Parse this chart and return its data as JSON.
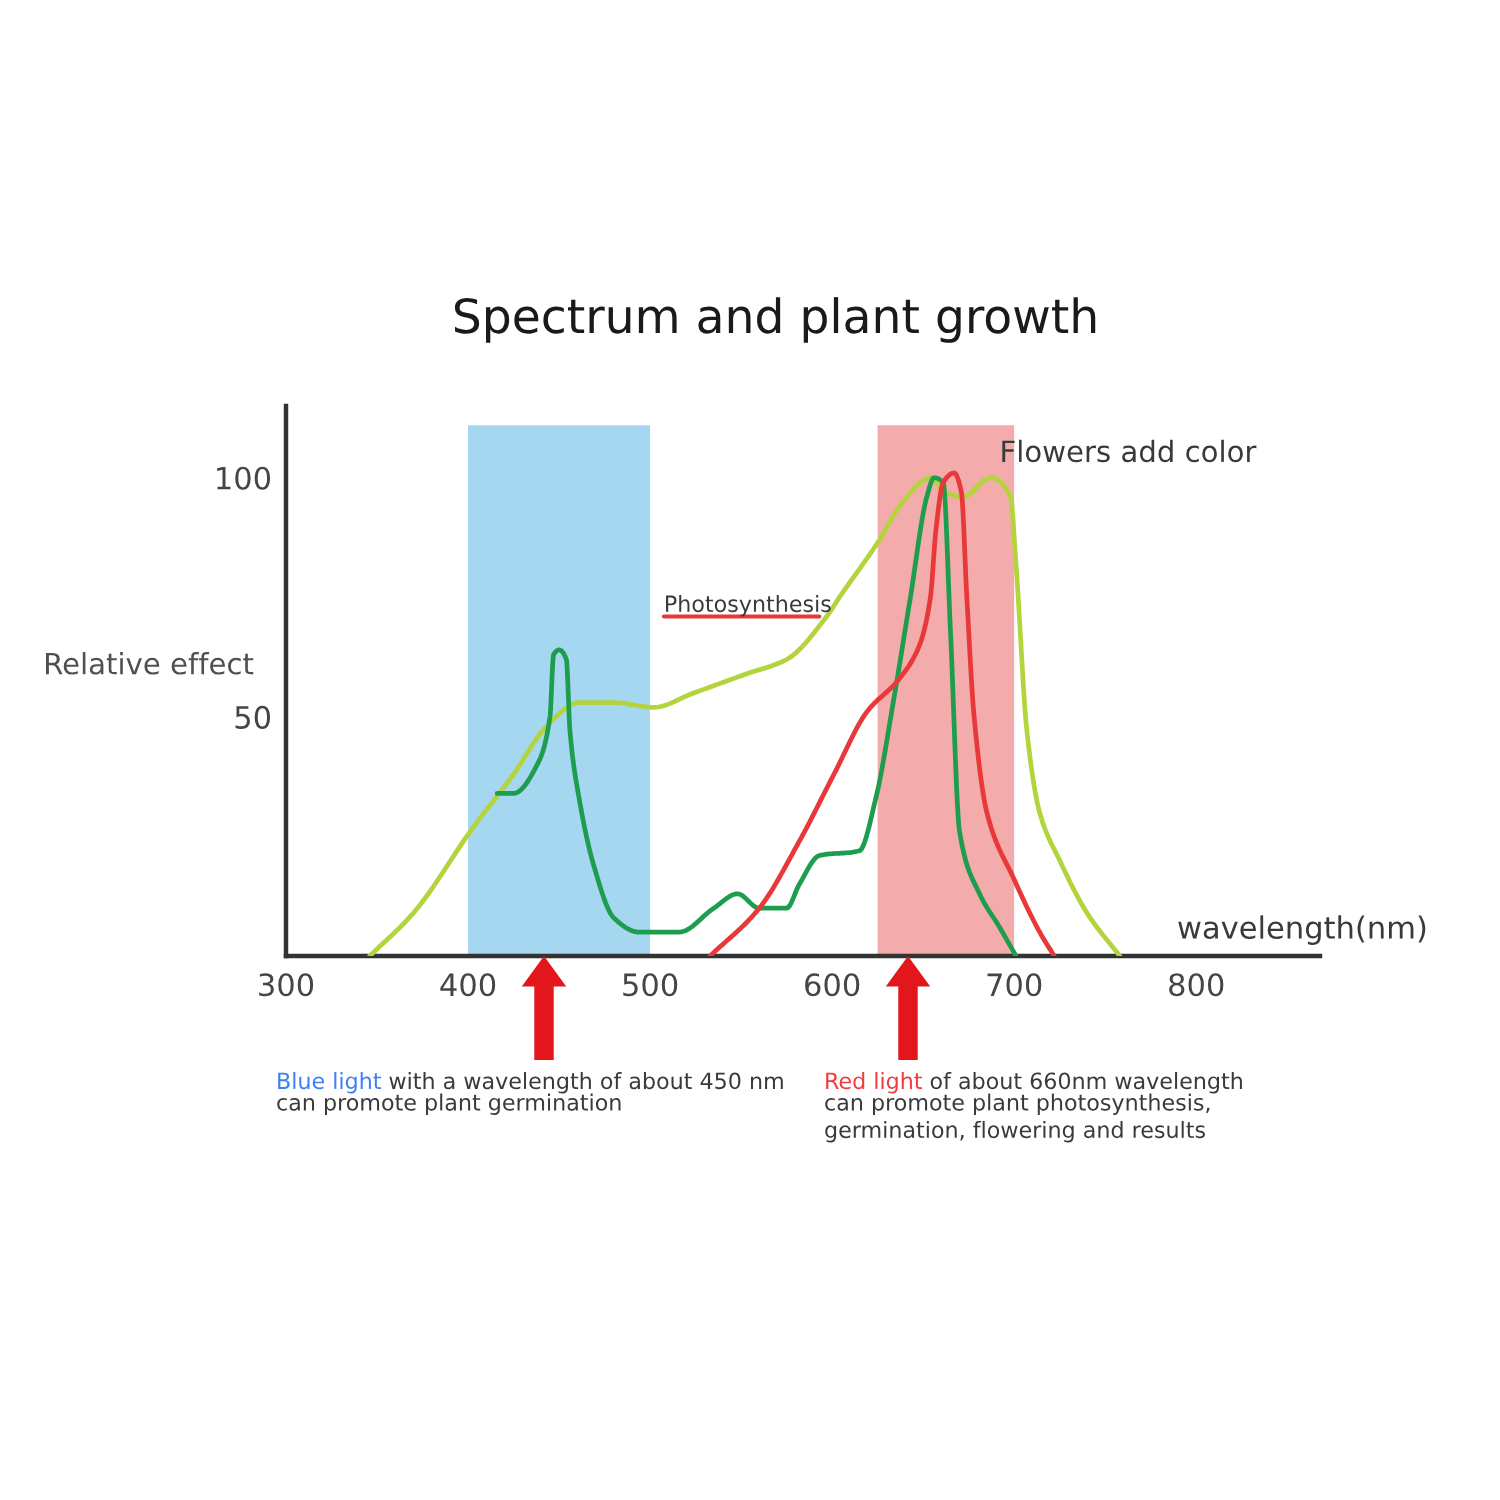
{
  "chart_data": {
    "type": "line",
    "title": "Spectrum and plant growth",
    "xlabel": "wavelength(nm)",
    "ylabel": "Relative effect",
    "xlim": [
      300,
      868
    ],
    "xticks": [
      300,
      400,
      500,
      600,
      700,
      800
    ],
    "ylim": [
      0,
      115
    ],
    "yticks": [
      50,
      100
    ],
    "series": [
      {
        "color": "#b3d43c",
        "x": [
          346,
          370,
          403,
          425,
          443,
          461,
          480,
          502,
          524,
          553,
          575,
          597,
          604,
          626,
          637,
          654,
          662,
          672,
          687,
          698,
          701,
          707,
          714,
          725,
          740,
          758
        ],
        "values": [
          0,
          9,
          27,
          38,
          48,
          53,
          53,
          52,
          55,
          59,
          62,
          71,
          75,
          87,
          94,
          100,
          97,
          96,
          100,
          96,
          82,
          47,
          30,
          20,
          9,
          0
        ]
      },
      {
        "color": "#1f9d4f",
        "x": [
          416,
          425,
          438,
          445,
          447,
          450,
          454,
          456,
          461,
          469,
          480,
          494,
          516,
          535,
          548,
          560,
          575,
          582,
          593,
          615,
          624,
          634,
          643,
          652,
          656,
          661,
          665,
          670,
          681,
          692,
          701
        ],
        "values": [
          34,
          34,
          40,
          50,
          63,
          64,
          62,
          47,
          33,
          19,
          8,
          5,
          5,
          10,
          13,
          10,
          10,
          15,
          21,
          22,
          33,
          54,
          75,
          96,
          100,
          99,
          68,
          26,
          13,
          6,
          0
        ]
      },
      {
        "color": "#e8383a",
        "x": [
          533,
          560,
          582,
          601,
          619,
          637,
          648,
          654,
          657,
          661,
          667,
          671,
          674,
          678,
          685,
          700,
          714,
          722
        ],
        "values": [
          0,
          10,
          24,
          38,
          51,
          58,
          65,
          75,
          89,
          99,
          101,
          97,
          75,
          50,
          30,
          16,
          5,
          0
        ]
      }
    ],
    "bands": [
      {
        "axis": "x",
        "from": 400,
        "to": 500,
        "color": "#a6d7f1"
      },
      {
        "axis": "x",
        "from": 625,
        "to": 700,
        "color": "#f3abab"
      }
    ],
    "annotations": [
      {
        "text": "Photosynthesis",
        "x": 593,
        "y": 71
      },
      "Flowers add color",
      "Blue light with a wavelength of about 450 nm\ncan promote plant germination",
      "Red light of about 660nm wavelength\ncan promote plant photosynthesis,\ngermination, flowering and results"
    ]
  }
}
